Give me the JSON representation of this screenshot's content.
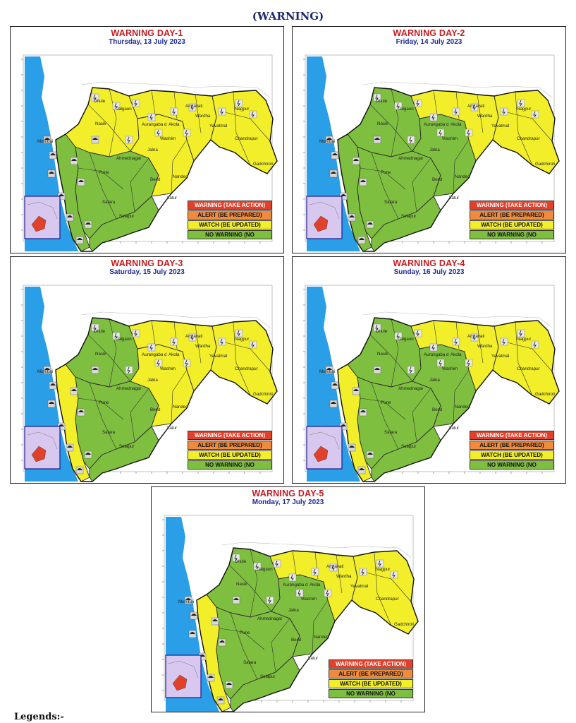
{
  "header": {
    "title": "(WARNING)"
  },
  "colors": {
    "warning": "#e1412b",
    "alert": "#f08a3c",
    "watch": "#f2ef2a",
    "no_warning": "#7fbf3f",
    "sea": "#2b9ee8",
    "title_red": "#c8191e",
    "date_blue": "#1f2a9b"
  },
  "legend": {
    "warning": "WARNING (TAKE ACTION)",
    "alert": "ALERT (BE PREPARED)",
    "watch": "WATCH (BE UPDATED)",
    "no_warning": "NO WARNING (NO"
  },
  "place_labels": [
    "Mumbai",
    "Nasik",
    "Pune",
    "Satara",
    "Jalgaon",
    "Amravati",
    "Nagpur",
    "Akola",
    "Yavatmal",
    "Chandrapur",
    "Gadchiroli",
    "Solapur",
    "Beed",
    "Latur",
    "Jalna",
    "Nanded",
    "Dhule",
    "Washim",
    "Wardha",
    "Ahmednagar",
    "Aurangaba d"
  ],
  "days": [
    {
      "title": "WARNING DAY-1",
      "date": "Thursday,  13 July 2023",
      "state": "d1"
    },
    {
      "title": "WARNING DAY-2",
      "date": "Friday,  14 July 2023",
      "state": "d2"
    },
    {
      "title": "WARNING DAY-3",
      "date": "Saturday,  15 July 2023",
      "state": "d3"
    },
    {
      "title": "WARNING DAY-4",
      "date": "Sunday,  16 July 2023",
      "state": "d4"
    },
    {
      "title": "WARNING DAY-5",
      "date": "Monday,  17 July 2023",
      "state": "d5"
    }
  ],
  "footer": {
    "label": "Legends:-"
  }
}
